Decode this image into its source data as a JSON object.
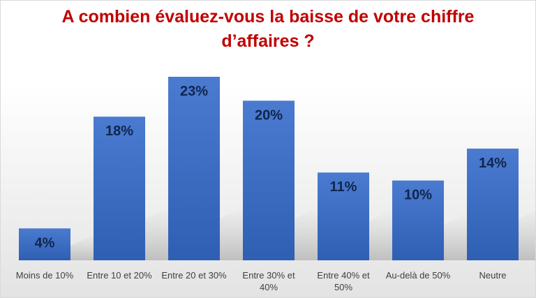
{
  "chart_data": {
    "type": "bar",
    "title": "A combien évaluez-vous la baisse de votre chiffre d’affaires ?",
    "categories": [
      [
        "Moins de 10%"
      ],
      [
        "Entre 10 et 20%"
      ],
      [
        "Entre 20 et 30%"
      ],
      [
        "Entre 30% et",
        "40%"
      ],
      [
        "Entre 40% et",
        "50%"
      ],
      [
        "Au-delà de 50%"
      ],
      [
        "Neutre"
      ]
    ],
    "values": [
      4,
      18,
      23,
      20,
      11,
      10,
      14
    ],
    "data_labels": [
      "4%",
      "18%",
      "23%",
      "20%",
      "11%",
      "10%",
      "14%"
    ],
    "unit": "%",
    "ylim": [
      0,
      23
    ],
    "grid": false,
    "legend": "none",
    "colors": {
      "bar_top": "#4a7bd0",
      "bar_bottom": "#2e5fb3",
      "data_label": "#12254d",
      "title": "#c00000"
    }
  }
}
